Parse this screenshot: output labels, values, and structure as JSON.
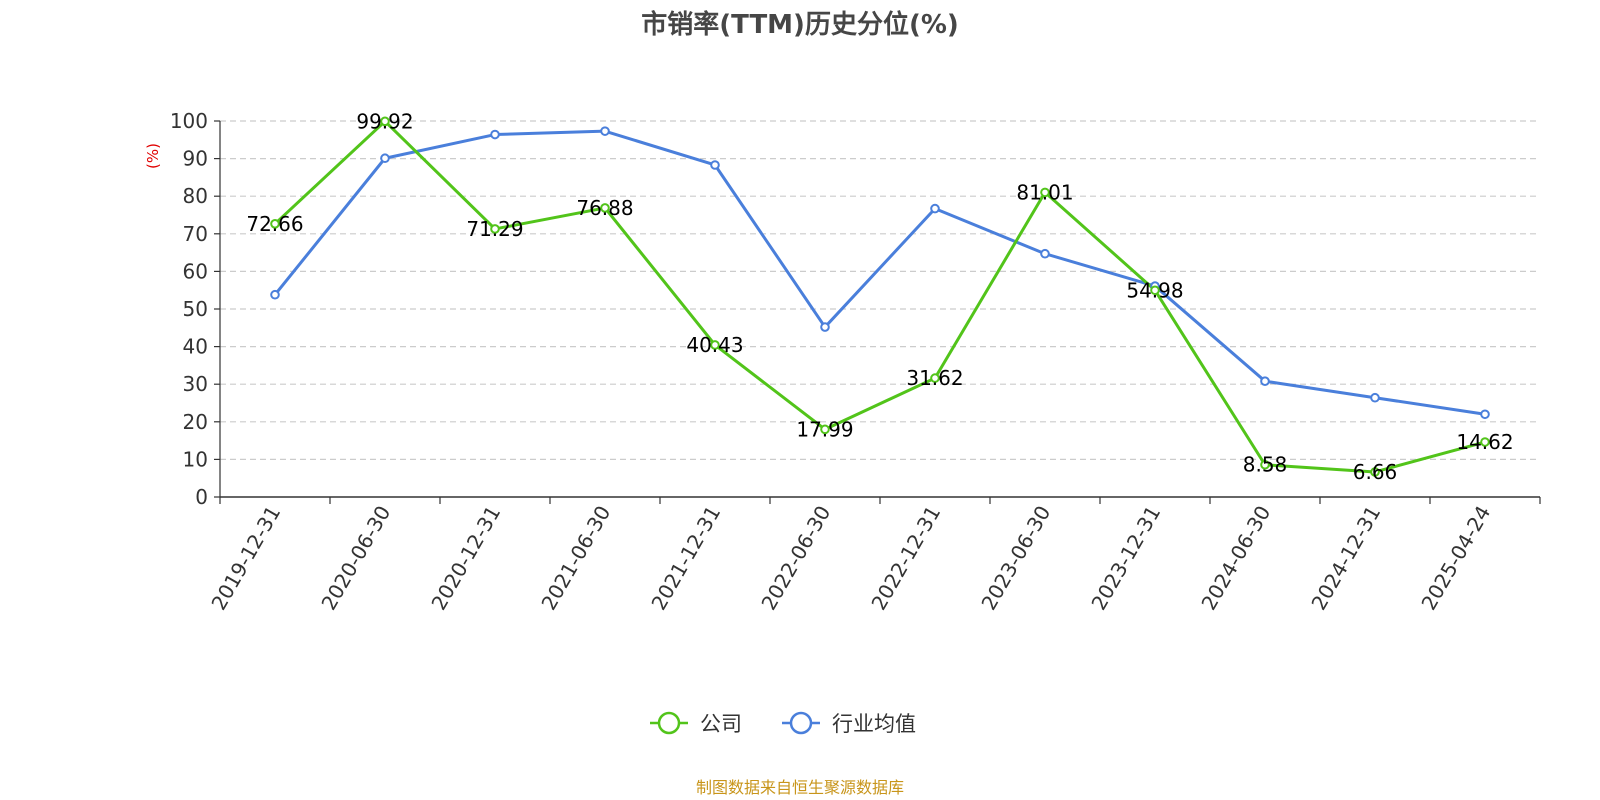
{
  "chart_data": {
    "type": "line",
    "title": "市销率(TTM)历史分位(%)",
    "ylabel": "(%)",
    "xlabel": "",
    "categories": [
      "2019-12-31",
      "2020-06-30",
      "2020-12-31",
      "2021-06-30",
      "2021-12-31",
      "2022-06-30",
      "2022-12-31",
      "2023-06-30",
      "2023-12-31",
      "2024-06-30",
      "2024-12-31",
      "2025-04-24"
    ],
    "ylim": [
      0,
      100
    ],
    "yticks": [
      "0",
      "10",
      "20",
      "30",
      "40",
      "50",
      "60",
      "70",
      "80",
      "90",
      "100"
    ],
    "grid": true,
    "legend_position": "bottom",
    "series": [
      {
        "name": "公司",
        "color": "#52c41a",
        "values": [
          72.66,
          99.92,
          71.29,
          76.88,
          40.43,
          17.99,
          31.62,
          81.01,
          54.98,
          8.58,
          6.66,
          14.62
        ],
        "labels": [
          "72.66",
          "99.92",
          "71.29",
          "76.88",
          "40.43",
          "17.99",
          "31.62",
          "81.01",
          "54.98",
          "8.58",
          "6.66",
          "14.62"
        ]
      },
      {
        "name": "行业均值",
        "color": "#4a7fdb",
        "values": [
          53.8,
          90.1,
          96.4,
          97.3,
          88.3,
          45.2,
          76.7,
          64.7,
          56.1,
          30.8,
          26.4,
          22.0
        ]
      }
    ]
  },
  "footer": {
    "source": "制图数据来自恒生聚源数据库"
  }
}
